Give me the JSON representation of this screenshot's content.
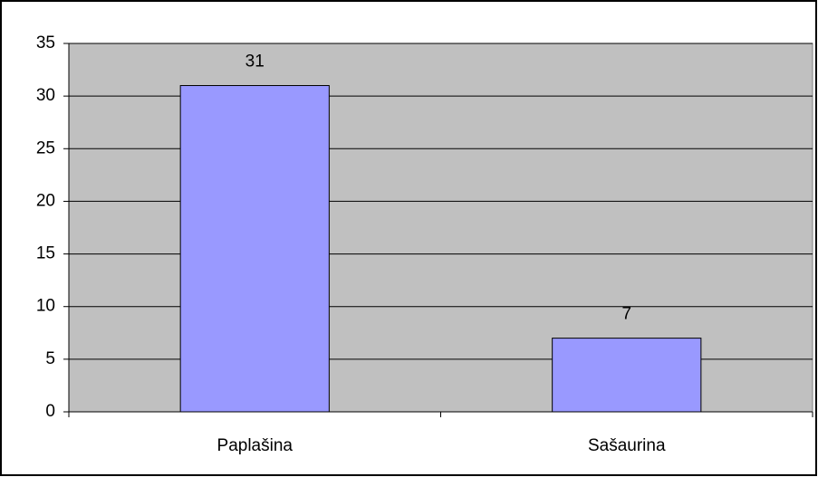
{
  "chart_data": {
    "type": "bar",
    "categories": [
      "Paplašina",
      "Sašaurina"
    ],
    "values": [
      31,
      7
    ],
    "color": "#9999ff",
    "ylim": [
      0,
      35
    ],
    "yticks": [
      0,
      5,
      10,
      15,
      20,
      25,
      30,
      35
    ],
    "grid": true
  }
}
